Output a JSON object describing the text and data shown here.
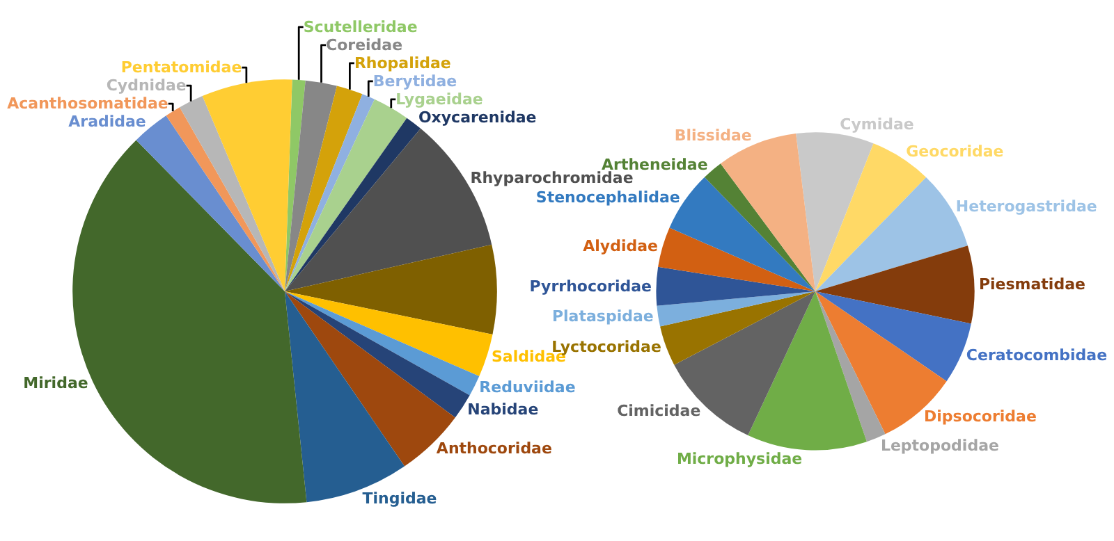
{
  "chart_data": [
    {
      "type": "pie",
      "legend": false,
      "categories": [
        "Scutelleridae",
        "Coreidae",
        "Rhopalidae",
        "Berytidae",
        "Lygaeidae",
        "Oxycarenidae",
        "Rhyparochromidae",
        null,
        "Saldidae",
        "Reduviidae",
        "Nabidae",
        "Anthocoridae",
        "Tingidae",
        "Miridae",
        "Aradidae",
        "Acanthosomatidae",
        "Cydnidae",
        "Pentatomidae"
      ],
      "values": [
        1,
        2.4,
        2,
        1,
        2.8,
        1.3,
        10.4,
        6.8,
        3.3,
        1.6,
        2,
        5.3,
        7.9,
        39.3,
        2.9,
        1.2,
        1.9,
        6.9
      ],
      "colors": [
        "#8fc866",
        "#878787",
        "#d4a20a",
        "#8fb0e0",
        "#a9d18e",
        "#1f3864",
        "#505050",
        "#7f6000",
        "#ffc000",
        "#5b9bd5",
        "#264478",
        "#9e480e",
        "#255e91",
        "#43682b",
        "#698ed0",
        "#f1975a",
        "#b7b7b7",
        "#ffcd33"
      ]
    },
    {
      "type": "pie",
      "legend": false,
      "categories": [
        "Cymidae",
        "Geocoridae",
        "Heterogastridae",
        "Piesmatidae",
        "Ceratocombidae",
        "Dipsocoridae",
        "Leptopodidae",
        "Microphysidae",
        "Cimicidae",
        "Lyctocoridae",
        "Plataspidae",
        "Pyrrhocoridae",
        "Alydidae",
        "Stenocephalidae",
        "Artheneidae",
        "Blissidae"
      ],
      "values": [
        7.9,
        6.3,
        8.1,
        7.9,
        6.3,
        8.2,
        2,
        12.2,
        10.4,
        4.1,
        2.1,
        3.9,
        4.1,
        6.2,
        2.1,
        8.2
      ],
      "colors": [
        "#c9c9c9",
        "#ffd966",
        "#9dc3e6",
        "#843c0c",
        "#4472c4",
        "#ed7d31",
        "#a5a5a5",
        "#70ad47",
        "#636363",
        "#997300",
        "#7cafdd",
        "#2f5597",
        "#d26012",
        "#337ac0",
        "#548235",
        "#f4b183"
      ]
    }
  ]
}
